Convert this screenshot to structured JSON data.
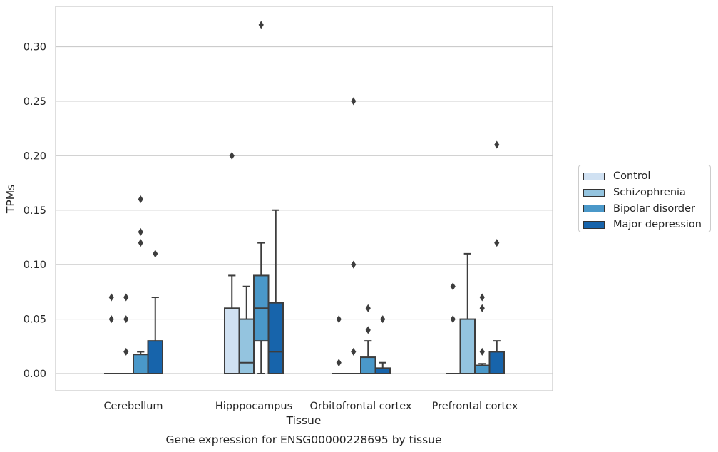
{
  "chart_data": {
    "type": "box",
    "title": "Gene expression for ENSG00000228695 by tissue",
    "xlabel": "Tissue",
    "ylabel": "TPMs",
    "ylim": [
      -0.015,
      0.33
    ],
    "yticks": [
      "0.00",
      "0.05",
      "0.10",
      "0.15",
      "0.20",
      "0.25",
      "0.30"
    ],
    "grid": "horizontal",
    "legend_position": "right",
    "categories": [
      "Cerebellum",
      "Hipppocampus",
      "Orbitofrontal cortex",
      "Prefrontal cortex"
    ],
    "series": [
      {
        "name": "Control",
        "color": "#d0e1f2",
        "boxes": [
          {
            "q1": 0,
            "median": 0,
            "q3": 0,
            "whisker_low": 0,
            "whisker_high": 0,
            "outliers": [
              0.05,
              0.07
            ]
          },
          {
            "q1": 0,
            "median": 0,
            "q3": 0.06,
            "whisker_low": 0,
            "whisker_high": 0.09,
            "outliers": [
              0.2
            ]
          },
          {
            "q1": 0,
            "median": 0,
            "q3": 0,
            "whisker_low": 0,
            "whisker_high": 0,
            "outliers": [
              0.01,
              0.05
            ]
          },
          {
            "q1": 0,
            "median": 0,
            "q3": 0,
            "whisker_low": 0,
            "whisker_high": 0,
            "outliers": [
              0.05,
              0.08
            ]
          }
        ]
      },
      {
        "name": "Schizophrenia",
        "color": "#94c4df",
        "boxes": [
          {
            "q1": 0,
            "median": 0,
            "q3": 0,
            "whisker_low": 0,
            "whisker_high": 0,
            "outliers": [
              0.02,
              0.05,
              0.07
            ]
          },
          {
            "q1": 0,
            "median": 0.01,
            "q3": 0.05,
            "whisker_low": 0,
            "whisker_high": 0.08,
            "outliers": []
          },
          {
            "q1": 0,
            "median": 0,
            "q3": 0,
            "whisker_low": 0,
            "whisker_high": 0,
            "outliers": [
              0.02,
              0.1,
              0.25
            ]
          },
          {
            "q1": 0,
            "median": 0,
            "q3": 0.05,
            "whisker_low": 0,
            "whisker_high": 0.11,
            "outliers": []
          }
        ]
      },
      {
        "name": "Bipolar disorder",
        "color": "#4a98c9",
        "boxes": [
          {
            "q1": 0,
            "median": 0,
            "q3": 0.0175,
            "whisker_low": 0,
            "whisker_high": 0.02,
            "outliers": [
              0.12,
              0.13,
              0.16
            ]
          },
          {
            "q1": 0.03,
            "median": 0.06,
            "q3": 0.09,
            "whisker_low": 0,
            "whisker_high": 0.12,
            "outliers": [
              0.32
            ]
          },
          {
            "q1": 0,
            "median": 0,
            "q3": 0.015,
            "whisker_low": 0,
            "whisker_high": 0.03,
            "outliers": [
              0.04,
              0.06
            ]
          },
          {
            "q1": 0,
            "median": 0,
            "q3": 0.0075,
            "whisker_low": 0,
            "whisker_high": 0.009,
            "outliers": [
              0.02,
              0.06,
              0.07
            ]
          }
        ]
      },
      {
        "name": "Major depression",
        "color": "#1764ab",
        "boxes": [
          {
            "q1": 0,
            "median": 0,
            "q3": 0.03,
            "whisker_low": 0,
            "whisker_high": 0.07,
            "outliers": [
              0.11
            ]
          },
          {
            "q1": 0,
            "median": 0.02,
            "q3": 0.065,
            "whisker_low": 0,
            "whisker_high": 0.15,
            "outliers": []
          },
          {
            "q1": 0,
            "median": 0,
            "q3": 0.005,
            "whisker_low": 0,
            "whisker_high": 0.01,
            "outliers": [
              0.05
            ]
          },
          {
            "q1": 0,
            "median": 0,
            "q3": 0.02,
            "whisker_low": 0,
            "whisker_high": 0.03,
            "outliers": [
              0.12,
              0.21
            ]
          }
        ]
      }
    ]
  }
}
